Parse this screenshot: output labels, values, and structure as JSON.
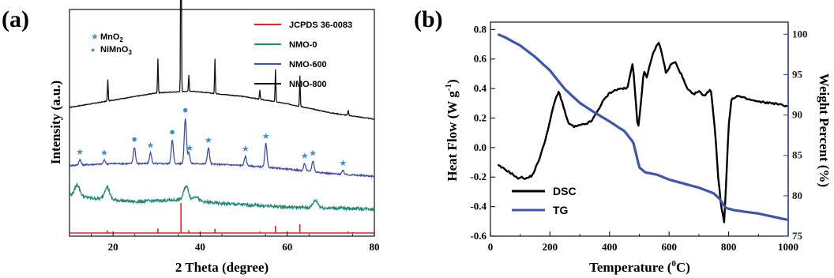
{
  "chart_data": [
    {
      "panel_label": "(a)",
      "type": "line",
      "xlabel": "2 Theta (degree)",
      "ylabel": "Intensity (a.u.)",
      "xlim": [
        10,
        80
      ],
      "xticks": [
        20,
        40,
        60,
        80
      ],
      "legend": {
        "placement": "top-right",
        "entries": [
          {
            "name": "JCPDS 36-0083",
            "color": "#e8202a"
          },
          {
            "name": "NMO-0",
            "color": "#1f8a78"
          },
          {
            "name": "NMO-600",
            "color": "#3d4fa8"
          },
          {
            "name": "NMO-800",
            "color": "#111111"
          }
        ]
      },
      "marker_legend": [
        {
          "symbol": "★",
          "label": "MnO",
          "sub": "2",
          "color": "#3b8fd0"
        },
        {
          "symbol": "●",
          "label": "NiMnO",
          "sub": "3",
          "color": "#3b8fd0"
        }
      ],
      "reference_lines": {
        "name": "JCPDS 36-0083",
        "peaks": [
          {
            "x": 18.7,
            "h": 0.08
          },
          {
            "x": 30.3,
            "h": 0.15
          },
          {
            "x": 35.6,
            "h": 1.0
          },
          {
            "x": 37.4,
            "h": 0.09
          },
          {
            "x": 43.4,
            "h": 0.14
          },
          {
            "x": 53.7,
            "h": 0.05
          },
          {
            "x": 57.3,
            "h": 0.24
          },
          {
            "x": 62.9,
            "h": 0.29
          },
          {
            "x": 74.0,
            "h": 0.05
          },
          {
            "x": 75.0,
            "h": 0.03
          }
        ]
      },
      "series": [
        {
          "name": "NMO-800",
          "color": "#111111",
          "baseline": [
            [
              10,
              0.71
            ],
            [
              20,
              0.75
            ],
            [
              30,
              0.79
            ],
            [
              38,
              0.8
            ],
            [
              50,
              0.77
            ],
            [
              60,
              0.73
            ],
            [
              70,
              0.68
            ],
            [
              80,
              0.645
            ]
          ],
          "peaks": [
            {
              "x": 18.8,
              "h": 0.12
            },
            {
              "x": 30.3,
              "h": 0.19
            },
            {
              "x": 35.6,
              "h": 1.22
            },
            {
              "x": 37.4,
              "h": 0.09
            },
            {
              "x": 43.4,
              "h": 0.19
            },
            {
              "x": 53.7,
              "h": 0.05
            },
            {
              "x": 57.3,
              "h": 0.18
            },
            {
              "x": 62.9,
              "h": 0.17
            },
            {
              "x": 74.0,
              "h": 0.03
            }
          ]
        },
        {
          "name": "NMO-600",
          "color": "#3d4fa8",
          "baseline": [
            [
              10,
              0.39
            ],
            [
              20,
              0.4
            ],
            [
              30,
              0.4
            ],
            [
              40,
              0.4
            ],
            [
              50,
              0.39
            ],
            [
              60,
              0.37
            ],
            [
              70,
              0.345
            ],
            [
              80,
              0.33
            ]
          ],
          "peaks": [
            {
              "x": 12.4,
              "h": 0.03
            },
            {
              "x": 18.0,
              "h": 0.02
            },
            {
              "x": 24.9,
              "h": 0.09
            },
            {
              "x": 28.6,
              "h": 0.06
            },
            {
              "x": 33.6,
              "h": 0.13
            },
            {
              "x": 36.6,
              "h": 0.25
            },
            {
              "x": 37.4,
              "h": 0.06
            },
            {
              "x": 41.9,
              "h": 0.09
            },
            {
              "x": 50.4,
              "h": 0.05
            },
            {
              "x": 55.1,
              "h": 0.13
            },
            {
              "x": 64.0,
              "h": 0.04
            },
            {
              "x": 65.9,
              "h": 0.06
            },
            {
              "x": 72.8,
              "h": 0.02
            }
          ]
        },
        {
          "name": "NMO-0",
          "color": "#1f8a78",
          "baseline": [
            [
              10,
              0.23
            ],
            [
              15,
              0.21
            ],
            [
              25,
              0.19
            ],
            [
              35,
              0.2
            ],
            [
              45,
              0.18
            ],
            [
              60,
              0.16
            ],
            [
              70,
              0.155
            ],
            [
              80,
              0.15
            ]
          ],
          "peaks": [
            {
              "x": 11.8,
              "h": 0.06
            },
            {
              "x": 18.6,
              "h": 0.07
            },
            {
              "x": 36.8,
              "h": 0.08
            },
            {
              "x": 39.0,
              "h": 0.03
            },
            {
              "x": 66.5,
              "h": 0.04
            }
          ]
        }
      ],
      "markers": [
        {
          "x": 12.4,
          "type": "star",
          "series": "NMO-600"
        },
        {
          "x": 18.0,
          "type": "star",
          "series": "NMO-600"
        },
        {
          "x": 24.9,
          "type": "dot",
          "series": "NMO-600"
        },
        {
          "x": 28.6,
          "type": "star",
          "series": "NMO-600"
        },
        {
          "x": 33.6,
          "type": "dot",
          "series": "NMO-600"
        },
        {
          "x": 36.6,
          "type": "dot",
          "series": "NMO-600"
        },
        {
          "x": 37.6,
          "type": "star",
          "series": "NMO-600"
        },
        {
          "x": 41.9,
          "type": "star",
          "series": "NMO-600"
        },
        {
          "x": 50.4,
          "type": "star",
          "series": "NMO-600"
        },
        {
          "x": 55.1,
          "type": "star",
          "series": "NMO-600"
        },
        {
          "x": 64.0,
          "type": "star",
          "series": "NMO-600"
        },
        {
          "x": 65.9,
          "type": "star",
          "series": "NMO-600"
        },
        {
          "x": 72.8,
          "type": "star",
          "series": "NMO-600"
        }
      ]
    },
    {
      "panel_label": "(b)",
      "type": "line",
      "xlabel": "Temperature (",
      "xlabel_sup": "0",
      "xlabel_end": "C)",
      "ylabel_left": "Heat Flow (W g",
      "ylabel_left_sup": "-1",
      "ylabel_left_end": ")",
      "ylabel_right": "Weight Percent (%)",
      "xlim": [
        0,
        1000
      ],
      "xticks": [
        0,
        200,
        400,
        600,
        800,
        1000
      ],
      "ylim_left": [
        -0.6,
        0.85
      ],
      "yticks_left": [
        -0.6,
        -0.4,
        -0.2,
        0.0,
        0.2,
        0.4,
        0.6,
        0.8
      ],
      "ylim_right": [
        75,
        101.5
      ],
      "yticks_right": [
        75,
        80,
        85,
        90,
        95,
        100
      ],
      "legend": {
        "placement": "bottom-left",
        "entries": [
          {
            "name": "DSC",
            "color": "#000000"
          },
          {
            "name": "TG",
            "color": "#3d55b0"
          }
        ]
      },
      "series": [
        {
          "name": "DSC",
          "axis": "left",
          "color": "#000000",
          "points": [
            [
              25,
              -0.12
            ],
            [
              50,
              -0.15
            ],
            [
              75,
              -0.18
            ],
            [
              90,
              -0.21
            ],
            [
              100,
              -0.2
            ],
            [
              120,
              -0.21
            ],
            [
              140,
              -0.19
            ],
            [
              160,
              -0.1
            ],
            [
              180,
              0.02
            ],
            [
              200,
              0.18
            ],
            [
              215,
              0.31
            ],
            [
              230,
              0.38
            ],
            [
              245,
              0.28
            ],
            [
              260,
              0.17
            ],
            [
              280,
              0.14
            ],
            [
              300,
              0.15
            ],
            [
              320,
              0.16
            ],
            [
              340,
              0.18
            ],
            [
              360,
              0.25
            ],
            [
              380,
              0.32
            ],
            [
              400,
              0.37
            ],
            [
              420,
              0.39
            ],
            [
              440,
              0.4
            ],
            [
              460,
              0.4
            ],
            [
              470,
              0.5
            ],
            [
              478,
              0.58
            ],
            [
              485,
              0.4
            ],
            [
              495,
              0.11
            ],
            [
              505,
              0.3
            ],
            [
              515,
              0.52
            ],
            [
              525,
              0.47
            ],
            [
              540,
              0.6
            ],
            [
              555,
              0.68
            ],
            [
              565,
              0.71
            ],
            [
              575,
              0.65
            ],
            [
              590,
              0.5
            ],
            [
              605,
              0.56
            ],
            [
              620,
              0.58
            ],
            [
              640,
              0.5
            ],
            [
              660,
              0.4
            ],
            [
              680,
              0.36
            ],
            [
              700,
              0.38
            ],
            [
              720,
              0.35
            ],
            [
              740,
              0.4
            ],
            [
              755,
              0.1
            ],
            [
              765,
              -0.2
            ],
            [
              775,
              -0.4
            ],
            [
              785,
              -0.5
            ],
            [
              790,
              -0.3
            ],
            [
              800,
              0.15
            ],
            [
              810,
              0.33
            ],
            [
              830,
              0.35
            ],
            [
              860,
              0.33
            ],
            [
              900,
              0.31
            ],
            [
              950,
              0.3
            ],
            [
              1000,
              0.28
            ]
          ]
        },
        {
          "name": "TG",
          "axis": "right",
          "color": "#3d55b0",
          "points": [
            [
              25,
              100.0
            ],
            [
              50,
              99.6
            ],
            [
              100,
              98.6
            ],
            [
              150,
              97.2
            ],
            [
              200,
              95.5
            ],
            [
              250,
              93.2
            ],
            [
              300,
              91.5
            ],
            [
              350,
              90.3
            ],
            [
              400,
              89.2
            ],
            [
              450,
              88.0
            ],
            [
              480,
              86.6
            ],
            [
              500,
              83.5
            ],
            [
              520,
              82.9
            ],
            [
              560,
              82.6
            ],
            [
              600,
              82.0
            ],
            [
              650,
              81.5
            ],
            [
              700,
              81.0
            ],
            [
              750,
              80.3
            ],
            [
              770,
              79.6
            ],
            [
              790,
              78.5
            ],
            [
              820,
              78.2
            ],
            [
              900,
              77.8
            ],
            [
              1000,
              77.0
            ]
          ]
        }
      ]
    }
  ]
}
